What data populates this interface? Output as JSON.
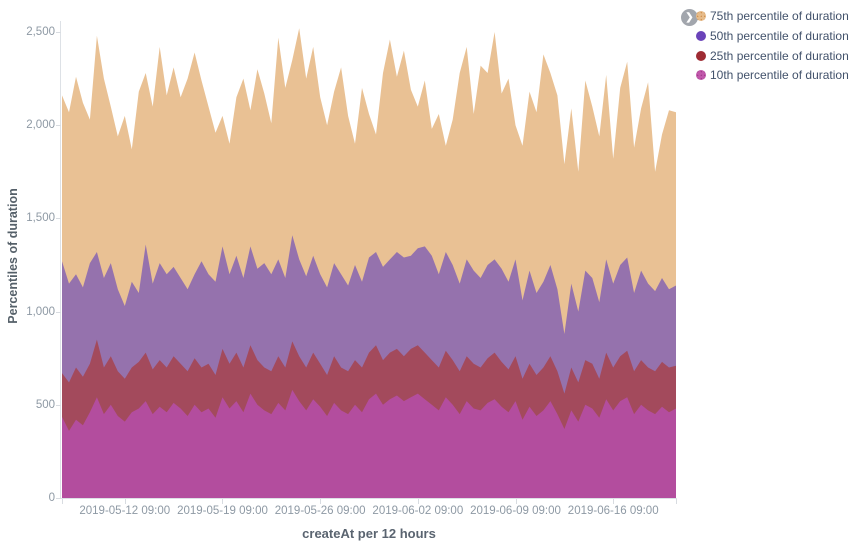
{
  "legend": {
    "toggle_icon": "❯",
    "items": [
      {
        "label": "75th percentile of duration",
        "dot_color": "#e6bb8a",
        "pattern_color": "#c9853f",
        "pattern": "dotted"
      },
      {
        "label": "50th percentile of duration",
        "dot_color": "#6a43b9",
        "pattern_color": "",
        "pattern": "solid"
      },
      {
        "label": "25th percentile of duration",
        "dot_color": "#9e2b33",
        "pattern_color": "",
        "pattern": "solid"
      },
      {
        "label": "10th percentile of duration",
        "dot_color": "#c158ab",
        "pattern_color": "#963480",
        "pattern": "dotted"
      }
    ]
  },
  "chart_data": {
    "type": "area",
    "stacked": false,
    "title": "",
    "xlabel": "createAt per 12 hours",
    "ylabel": "Percentiles of duration",
    "x_interval": "12 hours",
    "x_tick_labels": [
      "2019-05-12 09:00",
      "2019-05-19 09:00",
      "2019-05-26 09:00",
      "2019-06-02 09:00",
      "2019-06-09 09:00",
      "2019-06-16 09:00"
    ],
    "x_tick_bucket_indices": [
      9,
      23,
      37,
      51,
      65,
      79
    ],
    "buckets_total": 89,
    "ylim": [
      0,
      2558
    ],
    "y_tick_values": [
      0,
      500,
      1000,
      1500,
      2000,
      2500
    ],
    "y_tick_labels": [
      "0",
      "500",
      "1,000",
      "1,500",
      "2,000",
      "2,500"
    ],
    "legend_position": "top-right",
    "grid": false,
    "series": [
      {
        "name": "75th percentile of duration",
        "area_color": "#e9c194",
        "values": [
          2160,
          2070,
          2260,
          2120,
          2030,
          2480,
          2250,
          2100,
          1940,
          2050,
          1870,
          2180,
          2280,
          2100,
          2420,
          2160,
          2310,
          2150,
          2250,
          2390,
          2240,
          2100,
          1960,
          2050,
          1900,
          2150,
          2250,
          2080,
          2300,
          2170,
          2010,
          2470,
          2200,
          2350,
          2520,
          2250,
          2420,
          2150,
          2000,
          2180,
          2310,
          2050,
          1900,
          2200,
          2060,
          1950,
          2280,
          2460,
          2260,
          2400,
          2190,
          2100,
          2240,
          1980,
          2060,
          1890,
          2030,
          2280,
          2420,
          2060,
          2320,
          2280,
          2500,
          2170,
          2250,
          2000,
          1890,
          2180,
          2070,
          2380,
          2280,
          2160,
          1790,
          2090,
          1750,
          2240,
          2100,
          1940,
          2270,
          1820,
          2200,
          2340,
          1880,
          2090,
          2230,
          1750,
          1950,
          2080,
          2070
        ]
      },
      {
        "name": "50th percentile of duration",
        "area_color": "#9572ad",
        "values": [
          1270,
          1150,
          1200,
          1130,
          1260,
          1320,
          1180,
          1260,
          1120,
          1030,
          1160,
          1100,
          1360,
          1150,
          1260,
          1200,
          1240,
          1180,
          1120,
          1200,
          1270,
          1200,
          1160,
          1350,
          1200,
          1300,
          1180,
          1350,
          1230,
          1260,
          1200,
          1280,
          1180,
          1410,
          1280,
          1190,
          1300,
          1200,
          1130,
          1260,
          1200,
          1140,
          1250,
          1160,
          1290,
          1320,
          1240,
          1280,
          1320,
          1290,
          1300,
          1340,
          1350,
          1300,
          1200,
          1320,
          1250,
          1150,
          1280,
          1220,
          1180,
          1250,
          1280,
          1230,
          1160,
          1280,
          1060,
          1220,
          1100,
          1160,
          1250,
          1120,
          880,
          1150,
          1000,
          1220,
          1180,
          1050,
          1280,
          1150,
          1250,
          1290,
          1100,
          1220,
          1150,
          1110,
          1180,
          1120,
          1140
        ]
      },
      {
        "name": "25th percentile of duration",
        "area_color": "#a34a5c",
        "values": [
          670,
          620,
          700,
          650,
          720,
          850,
          700,
          760,
          680,
          640,
          700,
          730,
          780,
          690,
          740,
          700,
          760,
          720,
          680,
          750,
          700,
          720,
          660,
          800,
          720,
          780,
          700,
          820,
          740,
          700,
          680,
          760,
          700,
          840,
          760,
          700,
          780,
          720,
          660,
          760,
          700,
          680,
          740,
          700,
          780,
          820,
          740,
          780,
          800,
          760,
          800,
          820,
          780,
          740,
          700,
          790,
          740,
          680,
          760,
          720,
          700,
          750,
          780,
          730,
          690,
          760,
          640,
          720,
          660,
          700,
          760,
          680,
          560,
          700,
          620,
          740,
          720,
          640,
          780,
          700,
          760,
          790,
          680,
          740,
          700,
          680,
          730,
          700,
          710
        ]
      },
      {
        "name": "10th percentile of duration",
        "area_color": "#b34d9e",
        "values": [
          435,
          360,
          420,
          390,
          460,
          540,
          450,
          500,
          440,
          410,
          460,
          480,
          520,
          450,
          490,
          460,
          510,
          480,
          440,
          500,
          460,
          480,
          430,
          540,
          480,
          520,
          460,
          560,
          500,
          470,
          450,
          510,
          470,
          580,
          520,
          470,
          530,
          490,
          440,
          510,
          470,
          450,
          500,
          460,
          530,
          560,
          500,
          530,
          550,
          520,
          540,
          560,
          530,
          500,
          470,
          540,
          500,
          450,
          520,
          480,
          470,
          510,
          530,
          490,
          460,
          520,
          420,
          490,
          440,
          470,
          520,
          450,
          370,
          470,
          410,
          500,
          480,
          430,
          530,
          470,
          520,
          540,
          450,
          500,
          470,
          450,
          490,
          460,
          480
        ]
      }
    ]
  },
  "colors": {
    "axis_line": "#d8dce1",
    "tick_label": "#8e99a4",
    "axis_title": "#556069",
    "legend_text": "#42526b",
    "legend_toggle_bg": "#a2a6ad"
  }
}
